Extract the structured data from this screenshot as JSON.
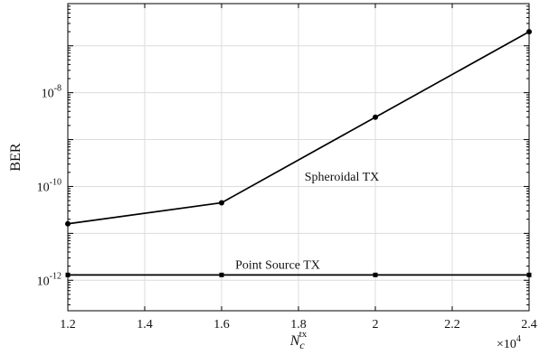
{
  "chart_data": {
    "type": "line",
    "xlabel": {
      "base": "N",
      "sub": "c",
      "sup": "tx"
    },
    "ylabel": "BER",
    "xlim": [
      1.2,
      2.4
    ],
    "ylim_log10": [
      -12.65,
      -6.1
    ],
    "yscale": "log",
    "x_multiplier_label": {
      "base": "×10",
      "exp": "4"
    },
    "x_ticks": [
      1.2,
      1.4,
      1.6,
      1.8,
      2.0,
      2.2,
      2.4
    ],
    "x_tick_labels": [
      "1.2",
      "1.4",
      "1.6",
      "1.8",
      "2",
      "2.2",
      "2.4"
    ],
    "y_ticks_exp": [
      -12,
      -10,
      -8
    ],
    "y_tick_base": "10",
    "grid": true,
    "series": [
      {
        "name": "Spheroidal TX",
        "marker": "circle",
        "x": [
          1.2,
          1.6,
          2.0,
          2.4
        ],
        "y": [
          1.6e-11,
          4.5e-11,
          3e-09,
          2e-07
        ]
      },
      {
        "name": "Point Source TX",
        "marker": "square",
        "x": [
          1.2,
          1.6,
          2.0,
          2.4
        ],
        "y": [
          1.3e-12,
          1.3e-12,
          1.3e-12,
          1.3e-12
        ]
      }
    ]
  }
}
